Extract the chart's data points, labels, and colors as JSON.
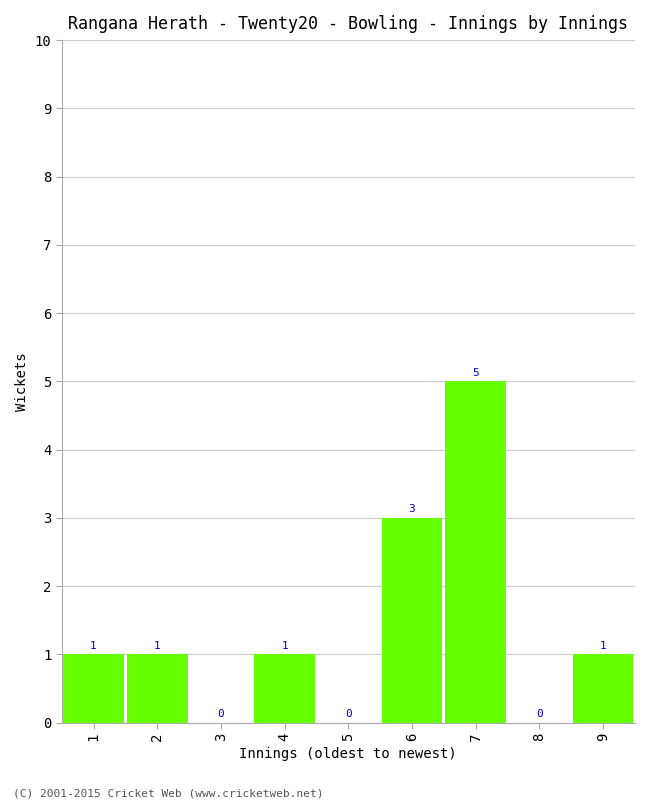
{
  "title": "Rangana Herath - Twenty20 - Bowling - Innings by Innings",
  "xlabel": "Innings (oldest to newest)",
  "ylabel": "Wickets",
  "categories": [
    "1",
    "2",
    "3",
    "4",
    "5",
    "6",
    "7",
    "8",
    "9"
  ],
  "values": [
    1,
    1,
    0,
    1,
    0,
    3,
    5,
    0,
    1
  ],
  "bar_color": "#66ff00",
  "ylim": [
    0,
    10
  ],
  "yticks": [
    0,
    1,
    2,
    3,
    4,
    5,
    6,
    7,
    8,
    9,
    10
  ],
  "label_color": "#0000cc",
  "label_fontsize": 8,
  "title_fontsize": 12,
  "axis_label_fontsize": 10,
  "tick_fontsize": 10,
  "footer": "(C) 2001-2015 Cricket Web (www.cricketweb.net)",
  "footer_fontsize": 8,
  "background_color": "#ffffff",
  "grid_color": "#cccccc"
}
